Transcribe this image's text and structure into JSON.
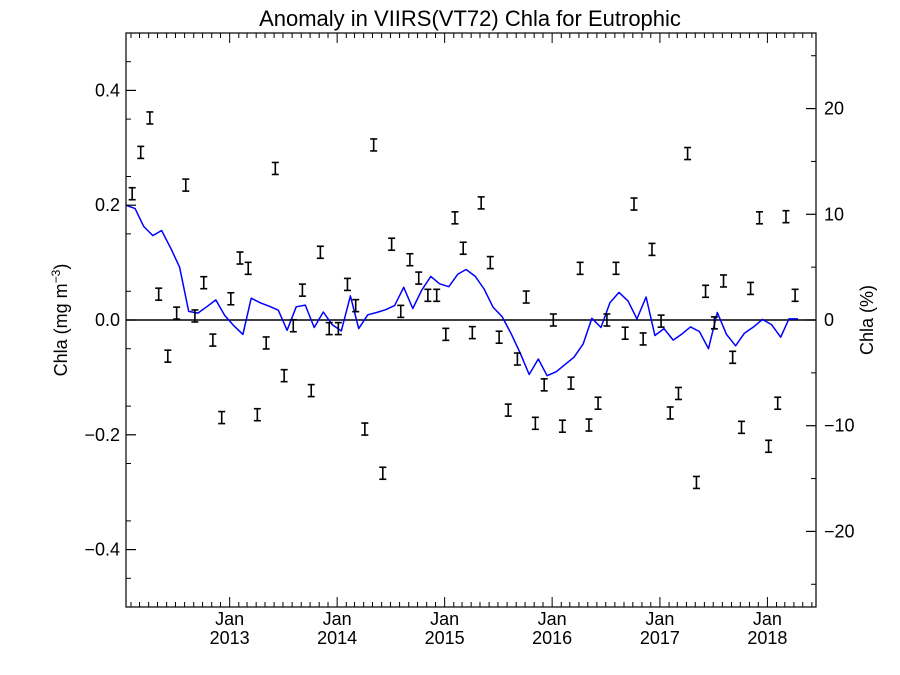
{
  "chart_data": {
    "type": "line",
    "title": "Anomaly in VIIRS(VT72) Chla for Eutrophic",
    "ylabel_main": "Chla (mg m",
    "ylabel_sup": "−3",
    "ylabel_close": ")",
    "ylabel_right": "Chla (%)",
    "ylim": [
      -0.5,
      0.5
    ],
    "ylim_right": [
      -27.15,
      27.15
    ],
    "xlim": [
      "2012-01-15",
      "2018-06-15"
    ],
    "yticks": [
      -0.4,
      -0.2,
      0.0,
      0.2,
      0.4
    ],
    "ytick_labels": [
      "−0.4",
      "−0.2",
      "0.0",
      "0.2",
      "0.4"
    ],
    "yticks_right": [
      -20,
      -10,
      0,
      10,
      20
    ],
    "ytick_labels_right": [
      "−20",
      "−10",
      "0",
      "10",
      "20"
    ],
    "xticks": [
      {
        "date": "2013-01-01",
        "line1": "Jan",
        "line2": "2013"
      },
      {
        "date": "2014-01-01",
        "line1": "Jan",
        "line2": "2014"
      },
      {
        "date": "2015-01-01",
        "line1": "Jan",
        "line2": "2015"
      },
      {
        "date": "2016-01-01",
        "line1": "Jan",
        "line2": "2016"
      },
      {
        "date": "2017-01-01",
        "line1": "Jan",
        "line2": "2017"
      },
      {
        "date": "2018-01-01",
        "line1": "Jan",
        "line2": "2018"
      }
    ],
    "zero_line": 0.0,
    "grid": false,
    "colors": {
      "line": "#0000ff",
      "markers": "#000000",
      "zero_line": "#000000"
    },
    "series": [
      {
        "kind": "line",
        "points": [
          [
            "2012-01-15",
            0.2
          ],
          [
            "2012-02-15",
            0.194
          ],
          [
            "2012-03-15",
            0.163
          ],
          [
            "2012-04-15",
            0.147
          ],
          [
            "2012-05-15",
            0.156
          ],
          [
            "2012-06-15",
            0.125
          ],
          [
            "2012-07-15",
            0.092
          ],
          [
            "2012-08-15",
            0.015
          ],
          [
            "2012-09-15",
            0.012
          ],
          [
            "2012-10-15",
            0.023
          ],
          [
            "2012-11-15",
            0.035
          ],
          [
            "2012-12-15",
            0.008
          ],
          [
            "2013-01-15",
            -0.01
          ],
          [
            "2013-02-15",
            -0.025
          ],
          [
            "2013-03-15",
            0.038
          ],
          [
            "2013-04-15",
            0.03
          ],
          [
            "2013-05-15",
            0.024
          ],
          [
            "2013-06-15",
            0.017
          ],
          [
            "2013-07-15",
            -0.018
          ],
          [
            "2013-08-15",
            0.023
          ],
          [
            "2013-09-15",
            0.026
          ],
          [
            "2013-10-15",
            -0.013
          ],
          [
            "2013-11-15",
            0.014
          ],
          [
            "2013-12-15",
            -0.008
          ],
          [
            "2014-01-15",
            -0.019
          ],
          [
            "2014-02-15",
            0.042
          ],
          [
            "2014-03-15",
            -0.015
          ],
          [
            "2014-04-15",
            0.009
          ],
          [
            "2014-05-15",
            0.013
          ],
          [
            "2014-06-15",
            0.018
          ],
          [
            "2014-07-15",
            0.025
          ],
          [
            "2014-08-15",
            0.057
          ],
          [
            "2014-09-15",
            0.02
          ],
          [
            "2014-10-15",
            0.052
          ],
          [
            "2014-11-15",
            0.076
          ],
          [
            "2014-12-15",
            0.063
          ],
          [
            "2015-01-15",
            0.058
          ],
          [
            "2015-02-15",
            0.08
          ],
          [
            "2015-03-15",
            0.088
          ],
          [
            "2015-04-15",
            0.076
          ],
          [
            "2015-05-15",
            0.054
          ],
          [
            "2015-06-15",
            0.022
          ],
          [
            "2015-07-15",
            0.006
          ],
          [
            "2015-08-15",
            -0.024
          ],
          [
            "2015-09-15",
            -0.058
          ],
          [
            "2015-10-15",
            -0.095
          ],
          [
            "2015-11-15",
            -0.068
          ],
          [
            "2015-12-15",
            -0.097
          ],
          [
            "2016-01-15",
            -0.09
          ],
          [
            "2016-02-15",
            -0.077
          ],
          [
            "2016-03-15",
            -0.065
          ],
          [
            "2016-04-15",
            -0.042
          ],
          [
            "2016-05-15",
            0.003
          ],
          [
            "2016-06-15",
            -0.013
          ],
          [
            "2016-07-15",
            0.03
          ],
          [
            "2016-08-15",
            0.048
          ],
          [
            "2016-09-15",
            0.033
          ],
          [
            "2016-10-15",
            0.002
          ],
          [
            "2016-11-15",
            0.04
          ],
          [
            "2016-12-15",
            -0.027
          ],
          [
            "2017-01-15",
            -0.015
          ],
          [
            "2017-02-15",
            -0.035
          ],
          [
            "2017-03-15",
            -0.025
          ],
          [
            "2017-04-15",
            -0.012
          ],
          [
            "2017-05-15",
            -0.02
          ],
          [
            "2017-06-15",
            -0.05
          ],
          [
            "2017-07-15",
            0.013
          ],
          [
            "2017-08-15",
            -0.025
          ],
          [
            "2017-09-15",
            -0.045
          ],
          [
            "2017-10-15",
            -0.023
          ],
          [
            "2017-11-15",
            -0.012
          ],
          [
            "2017-12-15",
            0.001
          ],
          [
            "2018-01-15",
            -0.008
          ],
          [
            "2018-02-15",
            -0.03
          ],
          [
            "2018-03-15",
            0.002
          ],
          [
            "2018-04-15",
            0.002
          ]
        ]
      },
      {
        "kind": "markers",
        "points": [
          [
            "2012-02-05",
            0.22
          ],
          [
            "2012-03-05",
            0.292
          ],
          [
            "2012-04-05",
            0.352
          ],
          [
            "2012-05-05",
            0.045
          ],
          [
            "2012-06-05",
            -0.063
          ],
          [
            "2012-07-05",
            0.012
          ],
          [
            "2012-08-05",
            0.235
          ],
          [
            "2012-09-05",
            0.007
          ],
          [
            "2012-10-05",
            0.065
          ],
          [
            "2012-11-05",
            -0.035
          ],
          [
            "2012-12-05",
            -0.17
          ],
          [
            "2013-01-05",
            0.037
          ],
          [
            "2013-02-05",
            0.108
          ],
          [
            "2013-03-05",
            0.09
          ],
          [
            "2013-04-05",
            -0.165
          ],
          [
            "2013-05-05",
            -0.04
          ],
          [
            "2013-06-05",
            0.264
          ],
          [
            "2013-07-05",
            -0.097
          ],
          [
            "2013-08-05",
            -0.01
          ],
          [
            "2013-09-05",
            0.052
          ],
          [
            "2013-10-05",
            -0.123
          ],
          [
            "2013-11-05",
            0.118
          ],
          [
            "2013-12-05",
            -0.015
          ],
          [
            "2014-01-05",
            -0.015
          ],
          [
            "2014-02-05",
            0.062
          ],
          [
            "2014-03-05",
            0.025
          ],
          [
            "2014-04-05",
            -0.19
          ],
          [
            "2014-05-05",
            0.305
          ],
          [
            "2014-06-05",
            -0.267
          ],
          [
            "2014-07-05",
            0.132
          ],
          [
            "2014-08-05",
            0.015
          ],
          [
            "2014-09-05",
            0.105
          ],
          [
            "2014-10-05",
            0.073
          ],
          [
            "2014-11-05",
            0.043
          ],
          [
            "2014-12-05",
            0.043
          ],
          [
            "2015-01-05",
            -0.025
          ],
          [
            "2015-02-05",
            0.178
          ],
          [
            "2015-03-05",
            0.125
          ],
          [
            "2015-04-05",
            -0.022
          ],
          [
            "2015-05-05",
            0.204
          ],
          [
            "2015-06-05",
            0.1
          ],
          [
            "2015-07-05",
            -0.03
          ],
          [
            "2015-08-05",
            -0.157
          ],
          [
            "2015-09-05",
            -0.068
          ],
          [
            "2015-10-05",
            0.04
          ],
          [
            "2015-11-05",
            -0.18
          ],
          [
            "2015-12-05",
            -0.113
          ],
          [
            "2016-01-05",
            0.0
          ],
          [
            "2016-02-05",
            -0.185
          ],
          [
            "2016-03-05",
            -0.11
          ],
          [
            "2016-04-05",
            0.09
          ],
          [
            "2016-05-05",
            -0.183
          ],
          [
            "2016-06-05",
            -0.145
          ],
          [
            "2016-07-05",
            0.0
          ],
          [
            "2016-08-05",
            0.09
          ],
          [
            "2016-09-05",
            -0.023
          ],
          [
            "2016-10-05",
            0.202
          ],
          [
            "2016-11-05",
            -0.033
          ],
          [
            "2016-12-05",
            0.123
          ],
          [
            "2017-01-05",
            -0.002
          ],
          [
            "2017-02-05",
            -0.162
          ],
          [
            "2017-03-05",
            -0.128
          ],
          [
            "2017-04-05",
            0.29
          ],
          [
            "2017-05-05",
            -0.283
          ],
          [
            "2017-06-05",
            0.05
          ],
          [
            "2017-07-05",
            -0.005
          ],
          [
            "2017-08-05",
            0.068
          ],
          [
            "2017-09-05",
            -0.065
          ],
          [
            "2017-10-05",
            -0.187
          ],
          [
            "2017-11-05",
            0.055
          ],
          [
            "2017-12-05",
            0.178
          ],
          [
            "2018-01-05",
            -0.22
          ],
          [
            "2018-02-05",
            -0.145
          ],
          [
            "2018-03-05",
            0.18
          ],
          [
            "2018-04-05",
            0.043
          ]
        ]
      }
    ]
  }
}
